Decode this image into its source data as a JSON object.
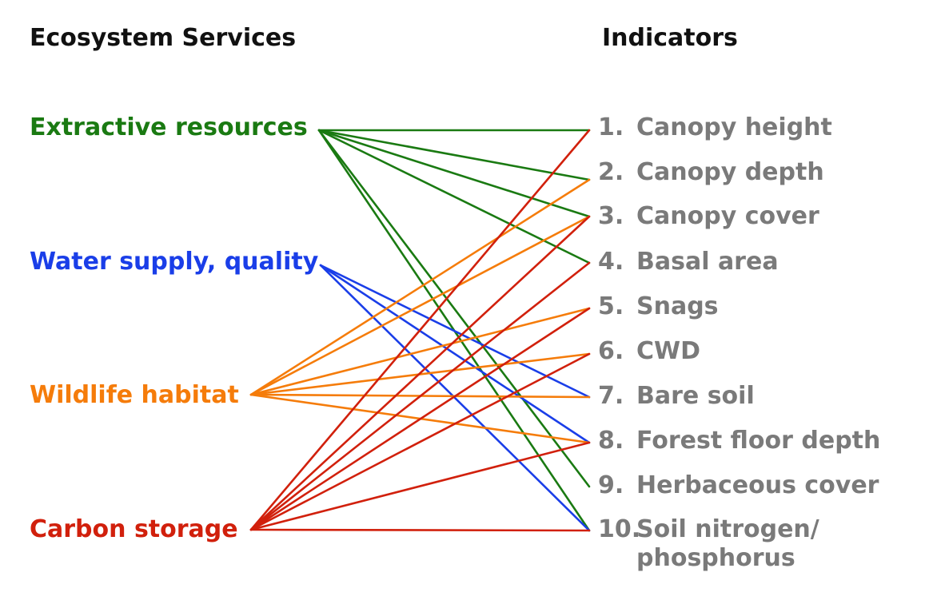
{
  "headers": {
    "left": "Ecosystem Services",
    "right": "Indicators"
  },
  "services": [
    {
      "id": "extractive",
      "label": "Extractive resources",
      "color": "#1a7a12"
    },
    {
      "id": "water",
      "label": "Water supply, quality",
      "color": "#1a3ee8"
    },
    {
      "id": "wildlife",
      "label": "Wildlife habitat",
      "color": "#f57c0a"
    },
    {
      "id": "carbon",
      "label": "Carbon storage",
      "color": "#d1200c"
    }
  ],
  "indicators": [
    {
      "num": "1.",
      "label": "Canopy height"
    },
    {
      "num": "2.",
      "label": "Canopy depth"
    },
    {
      "num": "3.",
      "label": "Canopy cover"
    },
    {
      "num": "4.",
      "label": "Basal area"
    },
    {
      "num": "5.",
      "label": "Snags"
    },
    {
      "num": "6.",
      "label": "CWD"
    },
    {
      "num": "7.",
      "label": "Bare soil"
    },
    {
      "num": "8.",
      "label": "Forest floor depth"
    },
    {
      "num": "9.",
      "label": "Herbaceous cover"
    },
    {
      "num": "10.",
      "label": "Soil nitrogen/",
      "label2": "phosphorus"
    }
  ],
  "links": {
    "extractive": [
      1,
      2,
      3,
      4,
      9,
      10
    ],
    "water": [
      7,
      8,
      10
    ],
    "wildlife": [
      2,
      3,
      5,
      6,
      7,
      8
    ],
    "carbon": [
      1,
      3,
      4,
      5,
      6,
      8,
      10
    ]
  },
  "colors": {
    "header": "#111111",
    "indicator": "#7a7a7a"
  }
}
